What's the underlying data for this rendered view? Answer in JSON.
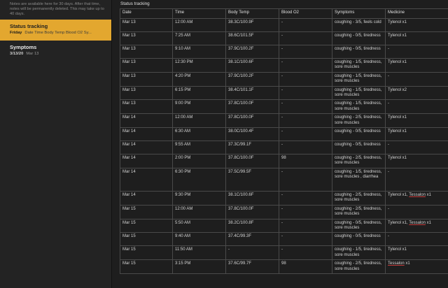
{
  "sidebar": {
    "notice": "Notes are available here for 30 days. After that time, notes will be permanently deleted. This may take up to 40 days.",
    "notes": [
      {
        "title": "Status tracking",
        "date": "Friday",
        "preview": "Date Time Body Temp Blood O2 Sy..."
      },
      {
        "title": "Symptoms",
        "date": "3/13/20",
        "preview": "Mar 13"
      }
    ]
  },
  "main": {
    "title": "Status tracking",
    "columns": [
      "Date",
      "Time",
      "Body Temp",
      "Blood O2",
      "Symptoms",
      "Medicine"
    ],
    "rows": [
      {
        "date": "Mar 13",
        "time": "12:00 AM",
        "temp": "38.3C/100.9F",
        "o2": "-",
        "symptoms": "coughing - 3/5, feels cold",
        "medicine": "Tylenol x1",
        "lines": 2
      },
      {
        "date": "Mar 13",
        "time": "7:25 AM",
        "temp": "38.6C/101.5F",
        "o2": "-",
        "symptoms": "coughing - 0/5, tiredness",
        "medicine": "Tylenol x1",
        "lines": 2
      },
      {
        "date": "Mar 13",
        "time": "9:10 AM",
        "temp": "37.9C/100.2F",
        "o2": "-",
        "symptoms": "coughing - 0/5, tiredness",
        "medicine": "-",
        "lines": 2
      },
      {
        "date": "Mar 13",
        "time": "12:30 PM",
        "temp": "38.1C/100.6F",
        "o2": "-",
        "symptoms": "coughing - 1/5, tiredness, sore muscles",
        "medicine": "Tylenol x1",
        "lines": 2
      },
      {
        "date": "Mar 13",
        "time": "4:20 PM",
        "temp": "37.9C/100.2F",
        "o2": "-",
        "symptoms": "coughing - 1/5, tiredness, sore muscles",
        "medicine": "-",
        "lines": 2
      },
      {
        "date": "Mar 13",
        "time": "6:15 PM",
        "temp": "38.4C/101.1F",
        "o2": "-",
        "symptoms": "coughing - 1/5, tiredness, sore muscles",
        "medicine": "Tylenol x2",
        "lines": 2
      },
      {
        "date": "Mar 13",
        "time": "9:00 PM",
        "temp": "37.8C/100.0F",
        "o2": "-",
        "symptoms": "coughing - 1/5, tiredness, sore muscles",
        "medicine": "-",
        "lines": 2
      },
      {
        "date": "Mar 14",
        "time": "12:00 AM",
        "temp": "37.8C/100.0F",
        "o2": "-",
        "symptoms": "coughing - 2/5, tiredness, sore muscles",
        "medicine": "Tylenol x1",
        "lines": 2
      },
      {
        "date": "Mar 14",
        "time": "6:30 AM",
        "temp": "38.0C/100.4F",
        "o2": "-",
        "symptoms": "coughing - 0/5, tiredness",
        "medicine": "Tylenol x1",
        "lines": 2
      },
      {
        "date": "Mar 14",
        "time": "9:55 AM",
        "temp": "37.3C/99.1F",
        "o2": "-",
        "symptoms": "coughing - 0/5, tiredness",
        "medicine": "-",
        "lines": 2
      },
      {
        "date": "Mar 14",
        "time": "2:00 PM",
        "temp": "37.8C/100.0F",
        "o2": "98",
        "symptoms": "coughing - 2/5, tiredness, sore muscles",
        "medicine": "Tylenol x1",
        "lines": 2
      },
      {
        "date": "Mar 14",
        "time": "6:30 PM",
        "temp": "37.5C/99.5F",
        "o2": "-",
        "symptoms": "coughing - 1/5, tiredness, sore muscles , diarrhea",
        "medicine": "-",
        "lines": 4
      },
      {
        "date": "Mar 14",
        "time": "9:30 PM",
        "temp": "38.1C/100.6F",
        "o2": "-",
        "symptoms": "coughing - 2/5, tiredness, sore muscles",
        "medicine": "Tylenol x1, ",
        "medicine_link": "Tessalon",
        "medicine_tail": " x1",
        "lines": 2
      },
      {
        "date": "Mar 15",
        "time": "12:00 AM",
        "temp": "37.8C/100.0F",
        "o2": "-",
        "symptoms": "coughing - 2/5, tiredness, sore muscles",
        "medicine": "-",
        "lines": 2
      },
      {
        "date": "Mar 15",
        "time": "5:50 AM",
        "temp": "38.2C/100.8F",
        "o2": "-",
        "symptoms": "coughing - 0/5, tiredness, sore muscles",
        "medicine": "Tylenol x1, ",
        "medicine_link": "Tessalon",
        "medicine_tail": " x1",
        "lines": 2
      },
      {
        "date": "Mar 15",
        "time": "9:40 AM",
        "temp": "37.4C/99.3F",
        "o2": "-",
        "symptoms": "coughing - 0/5, tiredness",
        "medicine": "-",
        "lines": 2
      },
      {
        "date": "Mar 15",
        "time": "11:50 AM",
        "temp": "-",
        "o2": "-",
        "symptoms": "coughing - 1/5, tiredness, sore muscles",
        "medicine": "Tylenol x1",
        "lines": 2
      },
      {
        "date": "Mar 15",
        "time": "3:15 PM",
        "temp": "37.6C/99.7F",
        "o2": "98",
        "symptoms": "coughing - 2/5, tiredness, sore muscles",
        "medicine": "",
        "medicine_link": "Tessalon",
        "medicine_tail": " x1",
        "lines": 2
      }
    ]
  }
}
